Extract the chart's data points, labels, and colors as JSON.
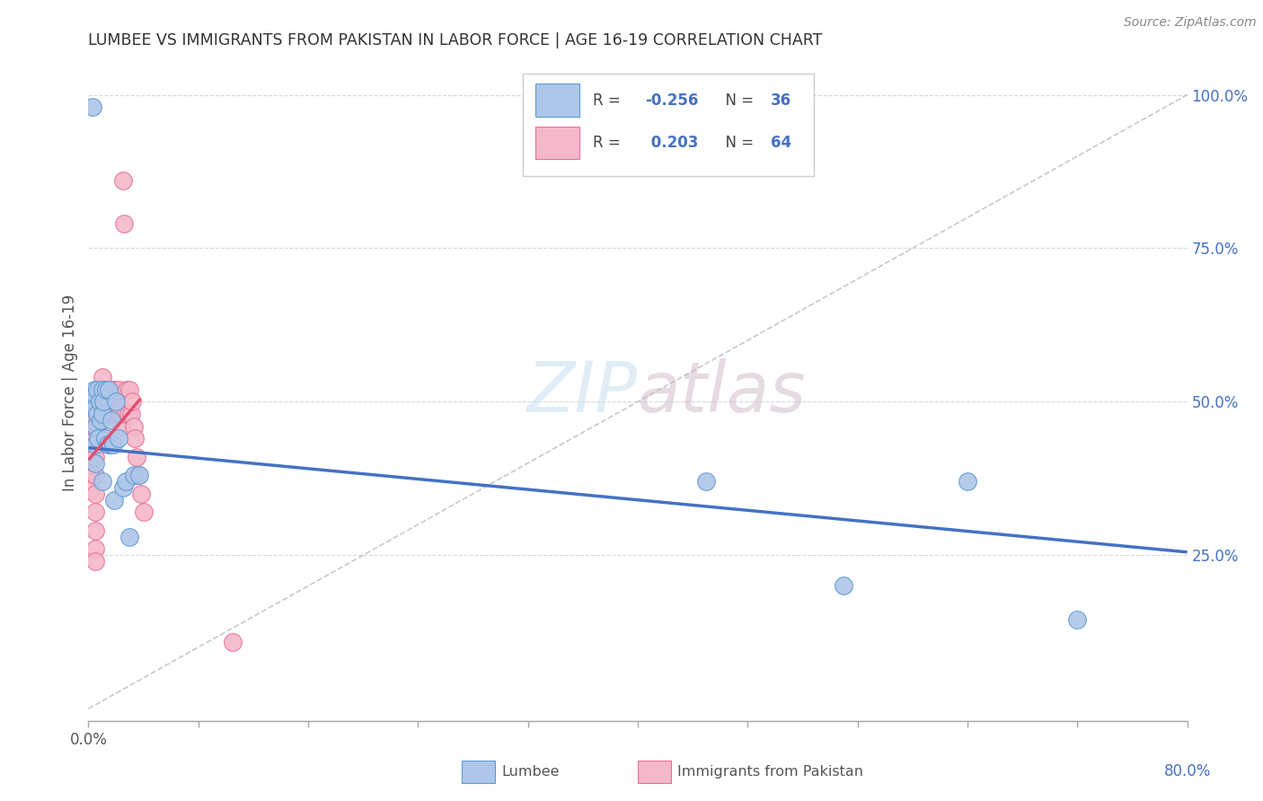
{
  "title": "LUMBEE VS IMMIGRANTS FROM PAKISTAN IN LABOR FORCE | AGE 16-19 CORRELATION CHART",
  "source": "Source: ZipAtlas.com",
  "ylabel": "In Labor Force | Age 16-19",
  "right_yticks": [
    "25.0%",
    "50.0%",
    "75.0%",
    "100.0%"
  ],
  "right_ytick_vals": [
    0.25,
    0.5,
    0.75,
    1.0
  ],
  "xlim": [
    0.0,
    0.8
  ],
  "ylim": [
    -0.02,
    1.05
  ],
  "watermark_zip": "ZIP",
  "watermark_atlas": "atlas",
  "lumbee_color": "#aec6e8",
  "lumbee_edge": "#5b9bd5",
  "pakistan_color": "#f4b8c8",
  "pakistan_edge": "#e87099",
  "line_blue": "#4472c4",
  "line_pink": "#e05070",
  "line_diag_color": "#c8c8c8",
  "grid_color": "#d8d8d8",
  "lumbee_x": [
    0.003,
    0.004,
    0.004,
    0.005,
    0.005,
    0.005,
    0.005,
    0.005,
    0.006,
    0.006,
    0.007,
    0.008,
    0.009,
    0.01,
    0.01,
    0.01,
    0.011,
    0.012,
    0.013,
    0.014,
    0.015,
    0.016,
    0.017,
    0.018,
    0.019,
    0.02,
    0.022,
    0.025,
    0.027,
    0.03,
    0.033,
    0.037,
    0.45,
    0.55,
    0.64,
    0.72
  ],
  "lumbee_y": [
    0.98,
    0.52,
    0.5,
    0.51,
    0.49,
    0.46,
    0.43,
    0.4,
    0.52,
    0.48,
    0.44,
    0.5,
    0.47,
    0.52,
    0.48,
    0.37,
    0.5,
    0.44,
    0.52,
    0.43,
    0.52,
    0.43,
    0.47,
    0.43,
    0.34,
    0.5,
    0.44,
    0.36,
    0.37,
    0.28,
    0.38,
    0.38,
    0.37,
    0.2,
    0.37,
    0.145
  ],
  "pakistan_x": [
    0.002,
    0.002,
    0.002,
    0.003,
    0.003,
    0.003,
    0.003,
    0.004,
    0.004,
    0.004,
    0.004,
    0.005,
    0.005,
    0.005,
    0.005,
    0.005,
    0.005,
    0.005,
    0.005,
    0.005,
    0.005,
    0.005,
    0.006,
    0.006,
    0.006,
    0.007,
    0.007,
    0.007,
    0.008,
    0.008,
    0.009,
    0.009,
    0.01,
    0.01,
    0.01,
    0.011,
    0.012,
    0.013,
    0.014,
    0.015,
    0.016,
    0.017,
    0.018,
    0.019,
    0.02,
    0.021,
    0.022,
    0.023,
    0.024,
    0.025,
    0.026,
    0.027,
    0.028,
    0.029,
    0.03,
    0.031,
    0.032,
    0.033,
    0.034,
    0.035,
    0.036,
    0.038,
    0.04,
    0.105
  ],
  "pakistan_y": [
    0.41,
    0.38,
    0.355,
    0.51,
    0.49,
    0.47,
    0.44,
    0.51,
    0.48,
    0.45,
    0.42,
    0.51,
    0.49,
    0.47,
    0.44,
    0.41,
    0.38,
    0.35,
    0.32,
    0.29,
    0.26,
    0.24,
    0.52,
    0.49,
    0.46,
    0.52,
    0.48,
    0.45,
    0.51,
    0.48,
    0.52,
    0.48,
    0.54,
    0.48,
    0.44,
    0.52,
    0.52,
    0.51,
    0.5,
    0.52,
    0.49,
    0.48,
    0.52,
    0.5,
    0.52,
    0.48,
    0.52,
    0.49,
    0.46,
    0.86,
    0.79,
    0.48,
    0.52,
    0.48,
    0.52,
    0.48,
    0.5,
    0.46,
    0.44,
    0.41,
    0.38,
    0.35,
    0.32,
    0.108
  ],
  "blue_line_x": [
    0.0,
    0.8
  ],
  "blue_line_y": [
    0.425,
    0.255
  ],
  "pink_line_x": [
    0.0,
    0.038
  ],
  "pink_line_y": [
    0.405,
    0.505
  ]
}
